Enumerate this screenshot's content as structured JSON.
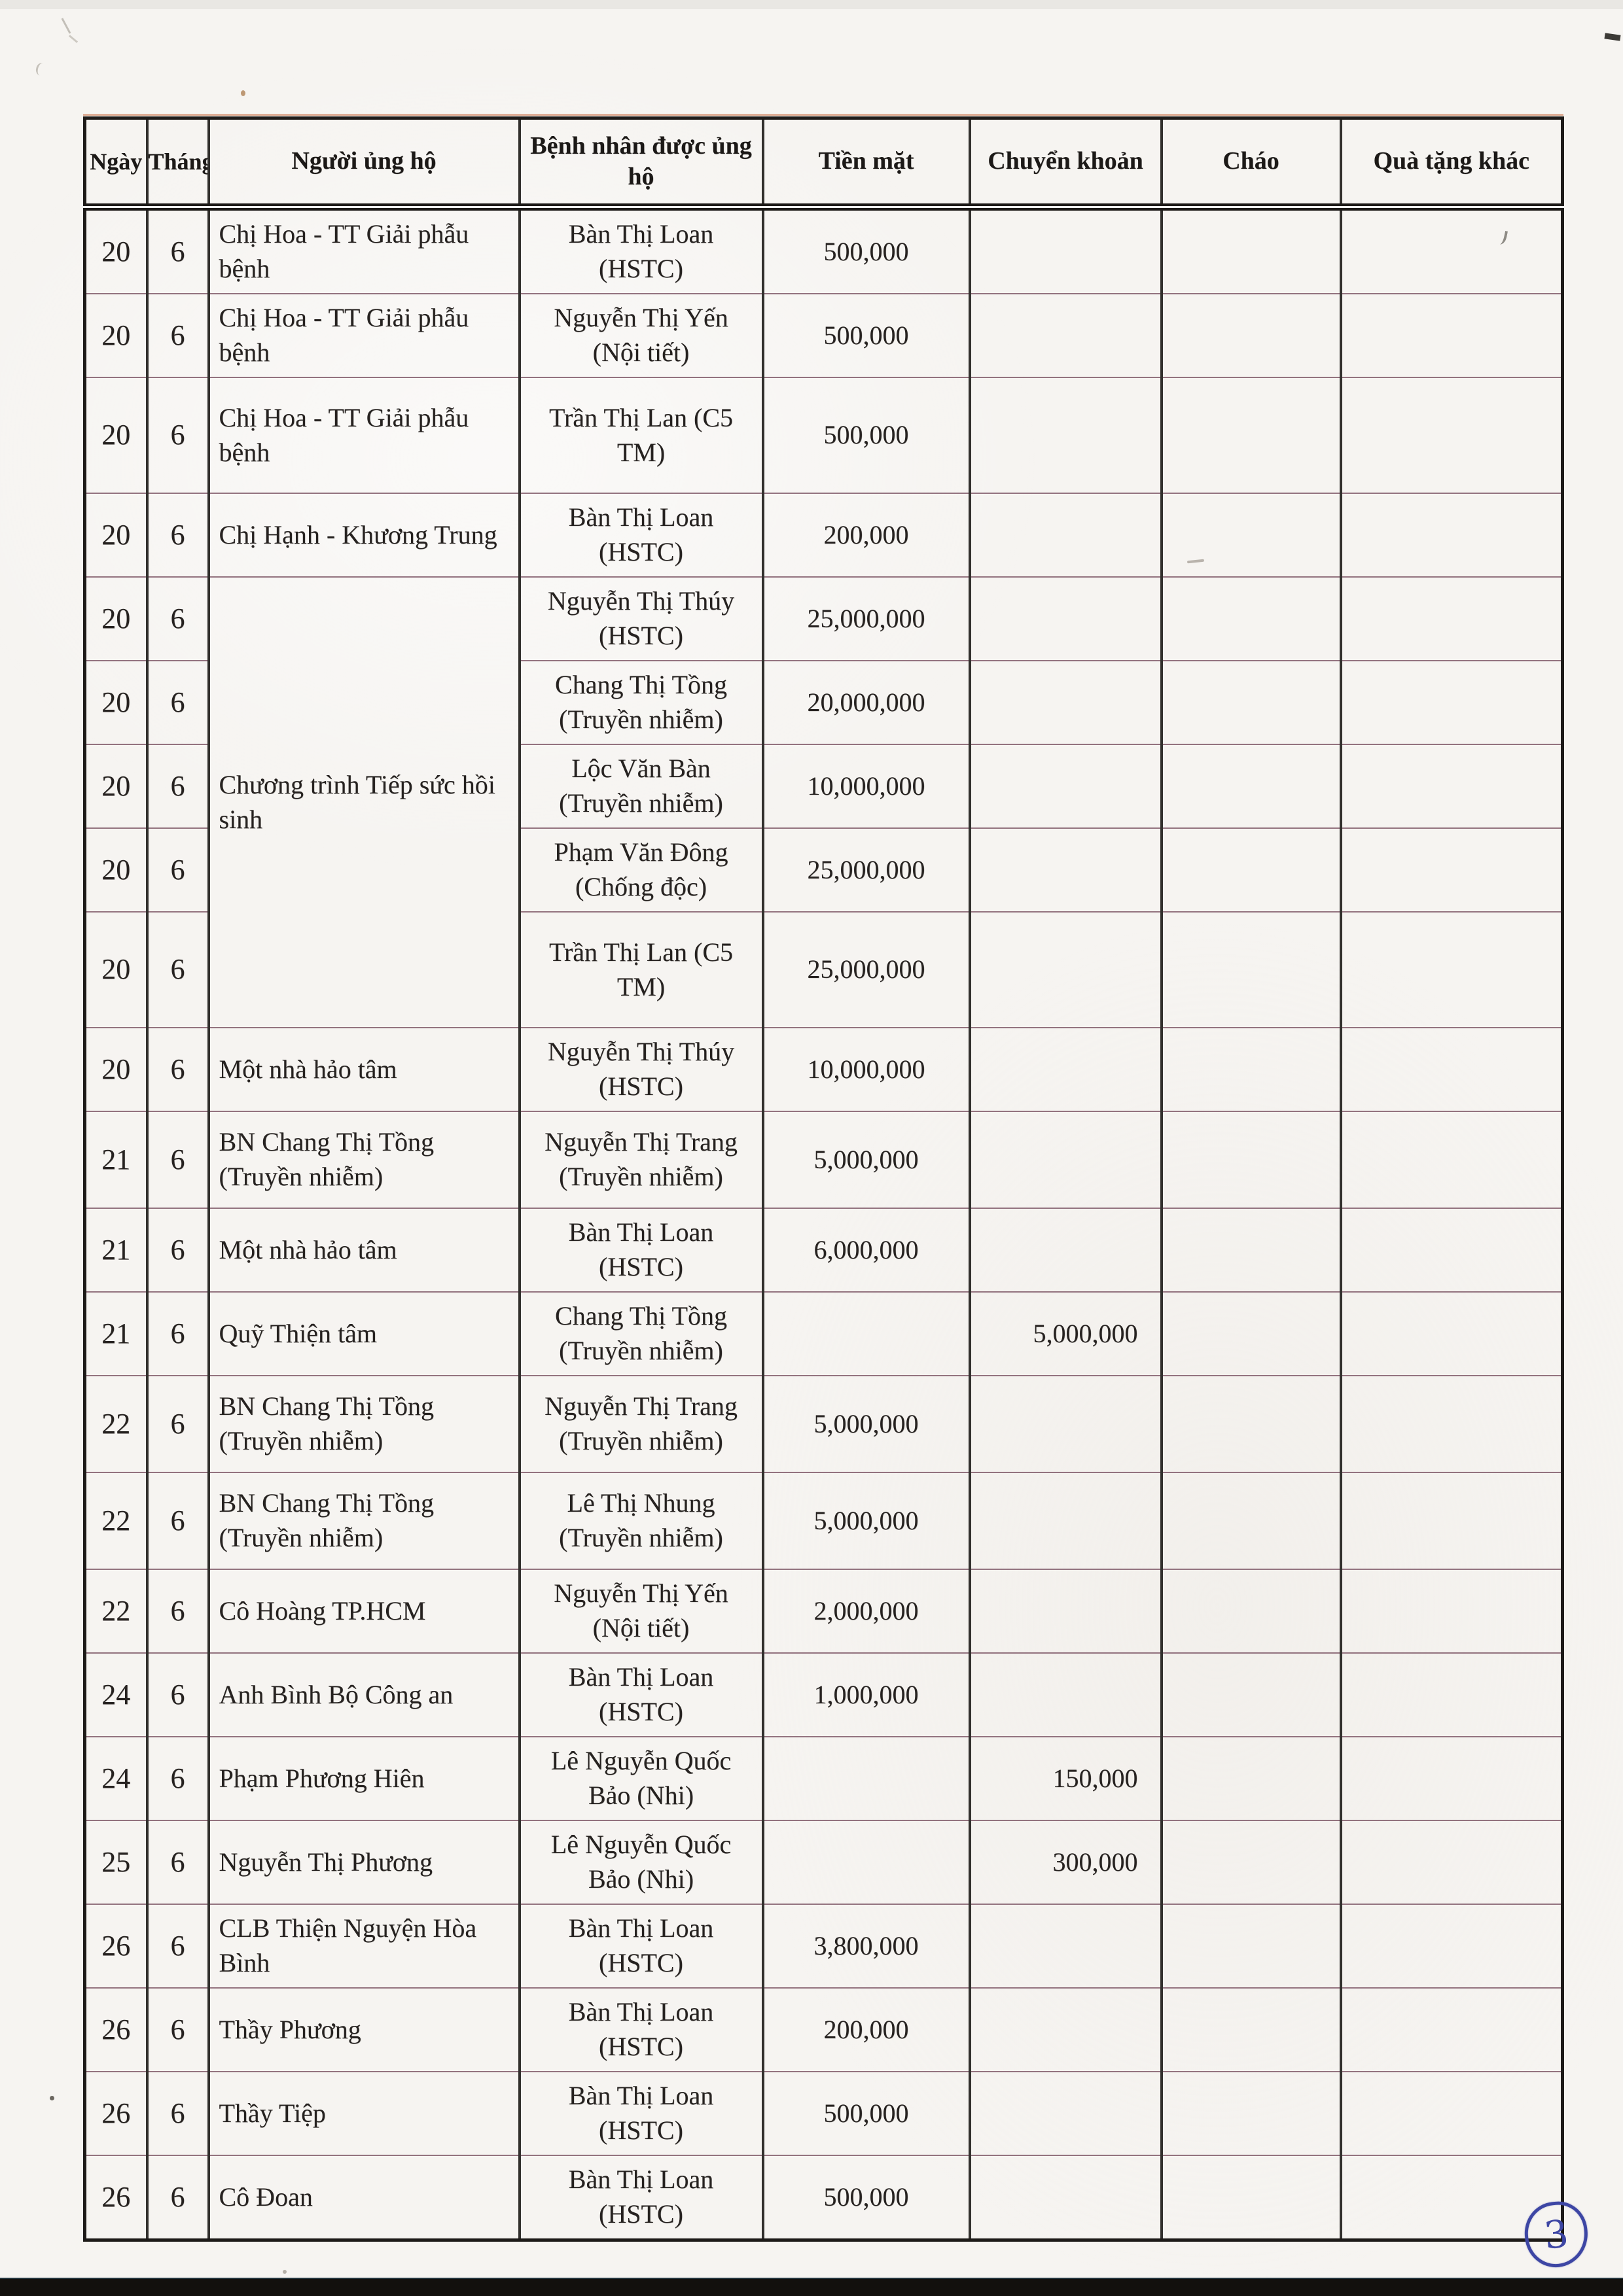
{
  "page": {
    "page_number": "3"
  },
  "table": {
    "headers": [
      "Ngày",
      "Tháng",
      "Người ủng hộ",
      "Bệnh nhân được ủng hộ",
      "Tiền mặt",
      "Chuyển khoản",
      "Cháo",
      "Quà tặng khác"
    ],
    "rows": [
      {
        "day": "20",
        "month": "6",
        "supporter": "Chị Hoa - TT Giải phẫu bệnh",
        "patient": "Bàn Thị Loan (HSTC)",
        "cash": "500,000",
        "transfer": "",
        "porridge": "",
        "other": ""
      },
      {
        "day": "20",
        "month": "6",
        "supporter": "Chị Hoa - TT Giải phẫu bệnh",
        "patient": "Nguyễn Thị Yến (Nội tiết)",
        "cash": "500,000",
        "transfer": "",
        "porridge": "",
        "other": ""
      },
      {
        "day": "20",
        "month": "6",
        "supporter": "Chị Hoa - TT Giải phẫu bệnh",
        "patient": "Trần Thị Lan (C5 TM)",
        "cash": "500,000",
        "transfer": "",
        "porridge": "",
        "other": ""
      },
      {
        "day": "20",
        "month": "6",
        "supporter": "Chị Hạnh - Khương Trung",
        "patient": "Bàn Thị Loan (HSTC)",
        "cash": "200,000",
        "transfer": "",
        "porridge": "",
        "other": ""
      },
      {
        "day": "20",
        "month": "6",
        "supporter": "Chương trình Tiếp sức hồi sinh",
        "supporter_rowspan": 5,
        "patient": "Nguyễn Thị Thúy (HSTC)",
        "cash": "25,000,000",
        "transfer": "",
        "porridge": "",
        "other": ""
      },
      {
        "day": "20",
        "month": "6",
        "supporter": null,
        "patient": "Chang Thị Tồng (Truyền nhiễm)",
        "cash": "20,000,000",
        "transfer": "",
        "porridge": "",
        "other": ""
      },
      {
        "day": "20",
        "month": "6",
        "supporter": null,
        "patient": "Lộc Văn Bàn (Truyền nhiễm)",
        "cash": "10,000,000",
        "transfer": "",
        "porridge": "",
        "other": ""
      },
      {
        "day": "20",
        "month": "6",
        "supporter": null,
        "patient": "Phạm Văn Đông (Chống độc)",
        "cash": "25,000,000",
        "transfer": "",
        "porridge": "",
        "other": ""
      },
      {
        "day": "20",
        "month": "6",
        "supporter": null,
        "patient": "Trần Thị Lan (C5 TM)",
        "cash": "25,000,000",
        "transfer": "",
        "porridge": "",
        "other": ""
      },
      {
        "day": "20",
        "month": "6",
        "supporter": "Một nhà hảo tâm",
        "patient": "Nguyễn Thị Thúy (HSTC)",
        "cash": "10,000,000",
        "transfer": "",
        "porridge": "",
        "other": ""
      },
      {
        "day": "21",
        "month": "6",
        "supporter": "BN Chang Thị Tồng (Truyền nhiễm)",
        "patient": "Nguyễn Thị Trang (Truyền nhiễm)",
        "cash": "5,000,000",
        "transfer": "",
        "porridge": "",
        "other": ""
      },
      {
        "day": "21",
        "month": "6",
        "supporter": "Một nhà hảo tâm",
        "patient": "Bàn Thị Loan (HSTC)",
        "cash": "6,000,000",
        "transfer": "",
        "porridge": "",
        "other": ""
      },
      {
        "day": "21",
        "month": "6",
        "supporter": "Quỹ Thiện tâm",
        "patient": "Chang Thị Tồng (Truyền nhiễm)",
        "cash": "",
        "transfer": "5,000,000",
        "porridge": "",
        "other": ""
      },
      {
        "day": "22",
        "month": "6",
        "supporter": "BN Chang Thị Tồng (Truyền nhiễm)",
        "patient": "Nguyễn Thị Trang (Truyền nhiễm)",
        "cash": "5,000,000",
        "transfer": "",
        "porridge": "",
        "other": ""
      },
      {
        "day": "22",
        "month": "6",
        "supporter": "BN Chang Thị Tồng (Truyền nhiễm)",
        "patient": "Lê Thị Nhung (Truyền nhiễm)",
        "cash": "5,000,000",
        "transfer": "",
        "porridge": "",
        "other": ""
      },
      {
        "day": "22",
        "month": "6",
        "supporter": "Cô Hoàng TP.HCM",
        "patient": "Nguyễn Thị Yến (Nội tiết)",
        "cash": "2,000,000",
        "transfer": "",
        "porridge": "",
        "other": ""
      },
      {
        "day": "24",
        "month": "6",
        "supporter": "Anh Bình Bộ Công an",
        "patient": "Bàn Thị Loan (HSTC)",
        "cash": "1,000,000",
        "transfer": "",
        "porridge": "",
        "other": ""
      },
      {
        "day": "24",
        "month": "6",
        "supporter": "Phạm Phương Hiên",
        "patient": "Lê Nguyễn Quốc Bảo (Nhi)",
        "cash": "",
        "transfer": "150,000",
        "porridge": "",
        "other": ""
      },
      {
        "day": "25",
        "month": "6",
        "supporter": "Nguyễn Thị Phương",
        "patient": "Lê Nguyễn Quốc Bảo (Nhi)",
        "cash": "",
        "transfer": "300,000",
        "porridge": "",
        "other": ""
      },
      {
        "day": "26",
        "month": "6",
        "supporter": "CLB Thiện Nguyện Hòa Bình",
        "patient": "Bàn Thị Loan (HSTC)",
        "cash": "3,800,000",
        "transfer": "",
        "porridge": "",
        "other": ""
      },
      {
        "day": "26",
        "month": "6",
        "supporter": "Thầy Phương",
        "patient": "Bàn Thị Loan (HSTC)",
        "cash": "200,000",
        "transfer": "",
        "porridge": "",
        "other": ""
      },
      {
        "day": "26",
        "month": "6",
        "supporter": "Thầy Tiệp",
        "patient": "Bàn Thị Loan (HSTC)",
        "cash": "500,000",
        "transfer": "",
        "porridge": "",
        "other": ""
      },
      {
        "day": "26",
        "month": "6",
        "supporter": "Cô Đoan",
        "patient": "Bàn Thị Loan (HSTC)",
        "cash": "500,000",
        "transfer": "",
        "porridge": "",
        "other": ""
      }
    ]
  }
}
